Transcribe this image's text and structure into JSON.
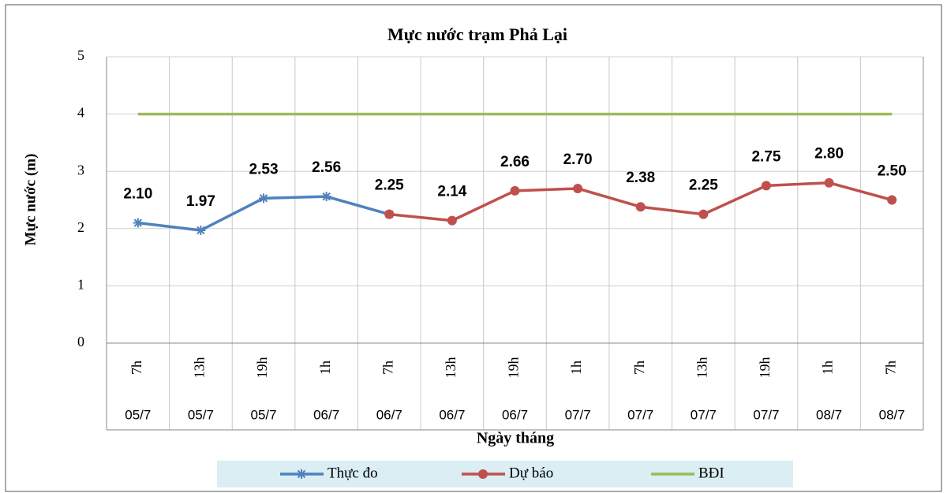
{
  "chart_data": {
    "type": "line",
    "title": "Mực nước trạm Phả Lại",
    "x_label": "Ngày tháng",
    "y_label": "Mực nước (m)",
    "categories": [
      "7h",
      "13h",
      "19h",
      "1h",
      "7h",
      "13h",
      "19h",
      "1h",
      "7h",
      "13h",
      "19h",
      "1h",
      "7h"
    ],
    "category_dates": [
      "05/7",
      "05/7",
      "05/7",
      "06/7",
      "06/7",
      "06/7",
      "06/7",
      "07/7",
      "07/7",
      "07/7",
      "07/7",
      "08/7",
      "08/7"
    ],
    "series": [
      {
        "name": "Thực đo",
        "color": "#4f81bd",
        "marker": "star",
        "values": [
          2.1,
          1.97,
          2.53,
          2.56,
          2.25,
          null,
          null,
          null,
          null,
          null,
          null,
          null,
          null
        ],
        "value_labels": [
          "2.10",
          "1.97",
          "2.53",
          "2.56",
          "2.25",
          null,
          null,
          null,
          null,
          null,
          null,
          null,
          null
        ]
      },
      {
        "name": "Dự báo",
        "color": "#c0504d",
        "marker": "circle",
        "values": [
          null,
          null,
          null,
          null,
          2.25,
          2.14,
          2.66,
          2.7,
          2.38,
          2.25,
          2.75,
          2.8,
          2.5
        ],
        "value_labels": [
          null,
          null,
          null,
          null,
          null,
          "2.14",
          "2.66",
          "2.70",
          "2.38",
          "2.25",
          "2.75",
          "2.80",
          "2.50"
        ]
      },
      {
        "name": "BĐI",
        "color": "#9bbb59",
        "marker": "none",
        "values": [
          4,
          4,
          4,
          4,
          4,
          4,
          4,
          4,
          4,
          4,
          4,
          4,
          4
        ]
      }
    ],
    "ylim": [
      0,
      5
    ],
    "yticks": [
      0,
      1,
      2,
      3,
      4,
      5
    ],
    "grid": true,
    "legend": "bottom"
  }
}
